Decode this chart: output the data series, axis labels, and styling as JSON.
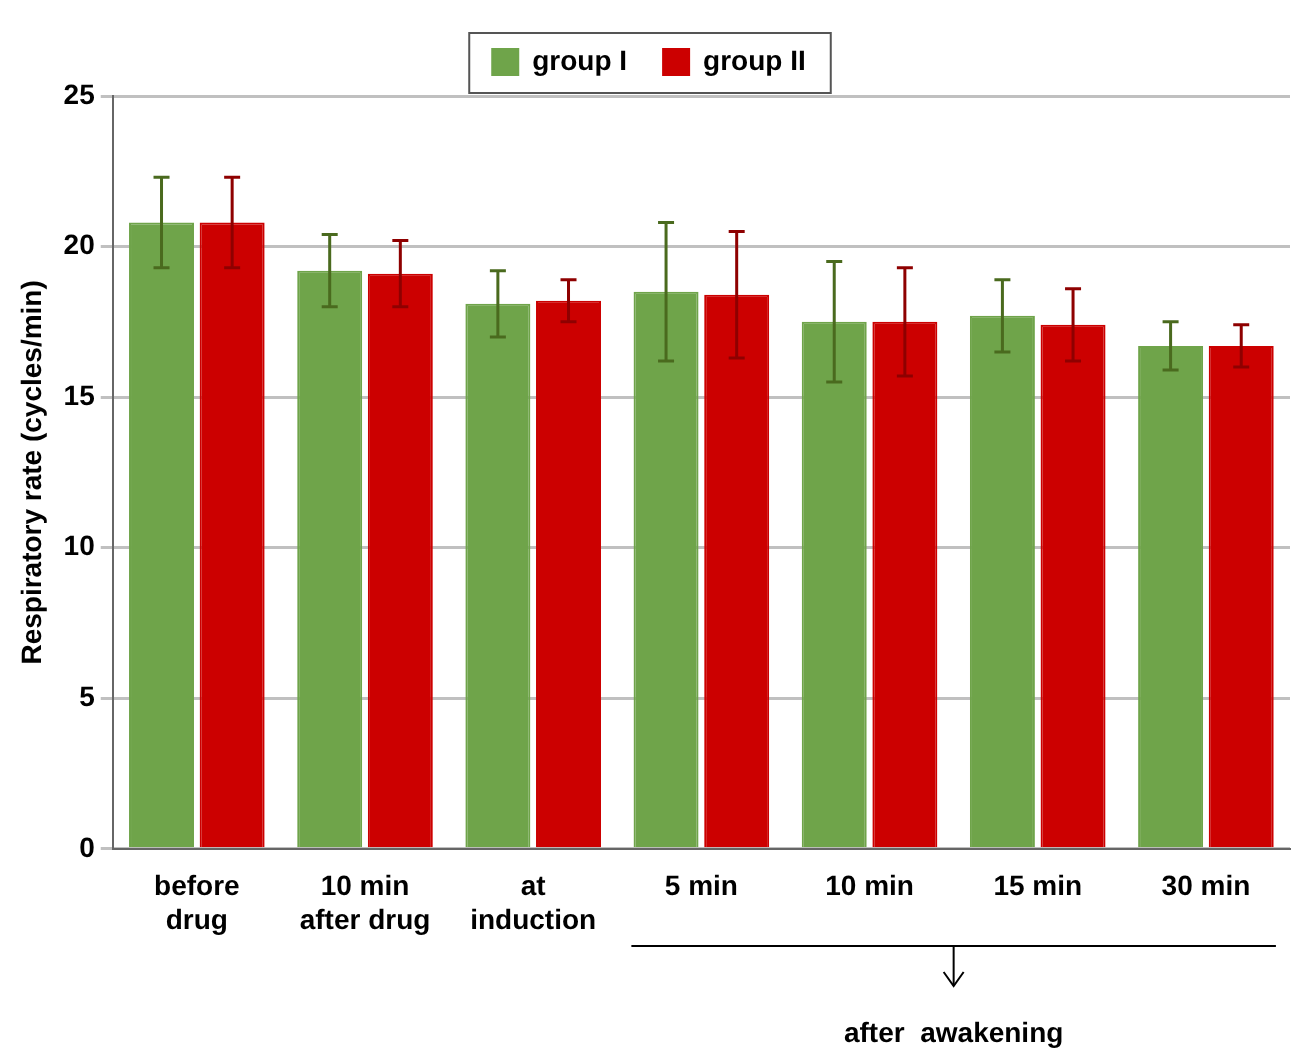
{
  "chart_data": {
    "type": "bar",
    "ylabel": "Respiratory rate (cycles/min)",
    "categories": [
      "before\ndrug",
      "10 min\nafter drug",
      "at\ninduction",
      "5 min",
      "10 min",
      "15 min",
      "30 min"
    ],
    "series": [
      {
        "name": "group I",
        "color": "#6fa44a",
        "values": [
          20.8,
          19.2,
          18.1,
          18.5,
          17.5,
          17.7,
          16.7
        ],
        "errors": [
          1.5,
          1.2,
          1.1,
          2.3,
          2.0,
          1.2,
          0.8
        ]
      },
      {
        "name": "group II",
        "color": "#cc0000",
        "values": [
          20.8,
          19.1,
          18.2,
          18.4,
          17.5,
          17.4,
          16.7
        ],
        "errors": [
          1.5,
          1.1,
          0.7,
          2.1,
          1.8,
          1.2,
          0.7
        ]
      }
    ],
    "ylim": [
      0,
      25
    ],
    "yticks": [
      0,
      5,
      10,
      15,
      20,
      25
    ],
    "grid": "y",
    "legend": "top",
    "annotations": [
      "after  awakening"
    ]
  }
}
